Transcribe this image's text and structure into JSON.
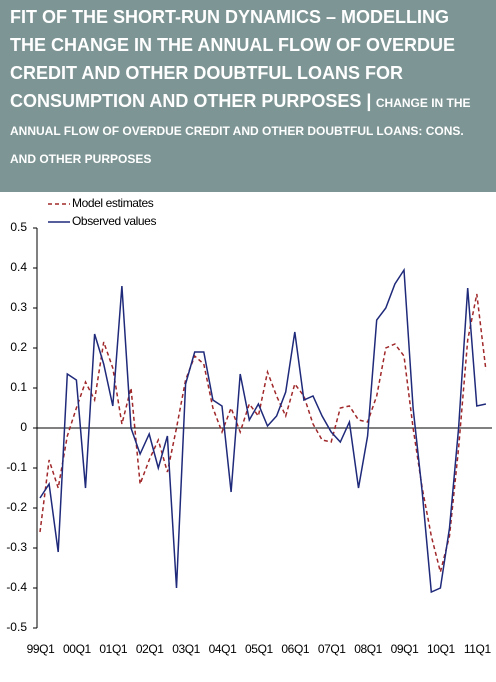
{
  "chart_data": {
    "type": "line",
    "title": "FIT OF THE SHORT-RUN DYNAMICS – MODELLING THE CHANGE IN THE ANNUAL FLOW OF OVERDUE CREDIT AND OTHER DOUBTFUL LOANS FOR CONSUMPTION AND OTHER PURPOSES |",
    "subtitle": "CHANGE IN THE ANNUAL FLOW OF OVERDUE CREDIT AND OTHER DOUBTFUL LOANS: CONS. AND OTHER PURPOSES",
    "categories": [
      "99Q1",
      null,
      null,
      null,
      "00Q1",
      null,
      null,
      null,
      "01Q1",
      null,
      null,
      null,
      "02Q1",
      null,
      null,
      null,
      "03Q1",
      null,
      null,
      null,
      "04Q1",
      null,
      null,
      null,
      "05Q1",
      null,
      null,
      null,
      "06Q1",
      null,
      null,
      null,
      "07Q1",
      null,
      null,
      null,
      "08Q1",
      null,
      null,
      null,
      "09Q1",
      null,
      null,
      null,
      "10Q1",
      null,
      null,
      null,
      "11Q1",
      null
    ],
    "series": [
      {
        "name": "Model estimates",
        "color": "#a0282a",
        "dashed": true,
        "values": [
          -0.26,
          -0.08,
          -0.15,
          -0.02,
          0.05,
          0.115,
          0.07,
          0.215,
          0.15,
          0.01,
          0.1,
          -0.14,
          -0.08,
          -0.03,
          -0.11,
          0.0,
          0.12,
          0.18,
          0.16,
          0.05,
          -0.01,
          0.05,
          -0.01,
          0.06,
          0.03,
          0.14,
          0.08,
          0.03,
          0.11,
          0.08,
          0.01,
          -0.03,
          -0.035,
          0.05,
          0.055,
          0.02,
          0.015,
          0.08,
          0.2,
          0.21,
          0.18,
          0.0,
          -0.15,
          -0.27,
          -0.36,
          -0.27,
          -0.05,
          0.22,
          0.335,
          0.145
        ]
      },
      {
        "name": "Observed values",
        "color": "#1f2a7a",
        "dashed": false,
        "values": [
          -0.175,
          -0.14,
          -0.31,
          0.135,
          0.12,
          -0.15,
          0.235,
          0.16,
          0.055,
          0.355,
          0.0,
          -0.065,
          -0.015,
          -0.1,
          -0.02,
          -0.4,
          0.11,
          0.19,
          0.19,
          0.07,
          0.055,
          -0.16,
          0.135,
          0.02,
          0.06,
          0.005,
          0.03,
          0.09,
          0.24,
          0.07,
          0.08,
          0.03,
          -0.01,
          -0.035,
          0.015,
          -0.15,
          -0.02,
          0.27,
          0.3,
          0.36,
          0.395,
          0.05,
          -0.16,
          -0.41,
          -0.4,
          -0.25,
          0.0,
          0.35,
          0.055,
          0.06
        ]
      }
    ],
    "ylim": [
      -0.5,
      0.5
    ],
    "yticks": [
      -0.5,
      -0.4,
      -0.3,
      -0.2,
      -0.1,
      0,
      0.1,
      0.2,
      0.3,
      0.4,
      0.5
    ],
    "legend": "upper-left",
    "grid": false
  }
}
